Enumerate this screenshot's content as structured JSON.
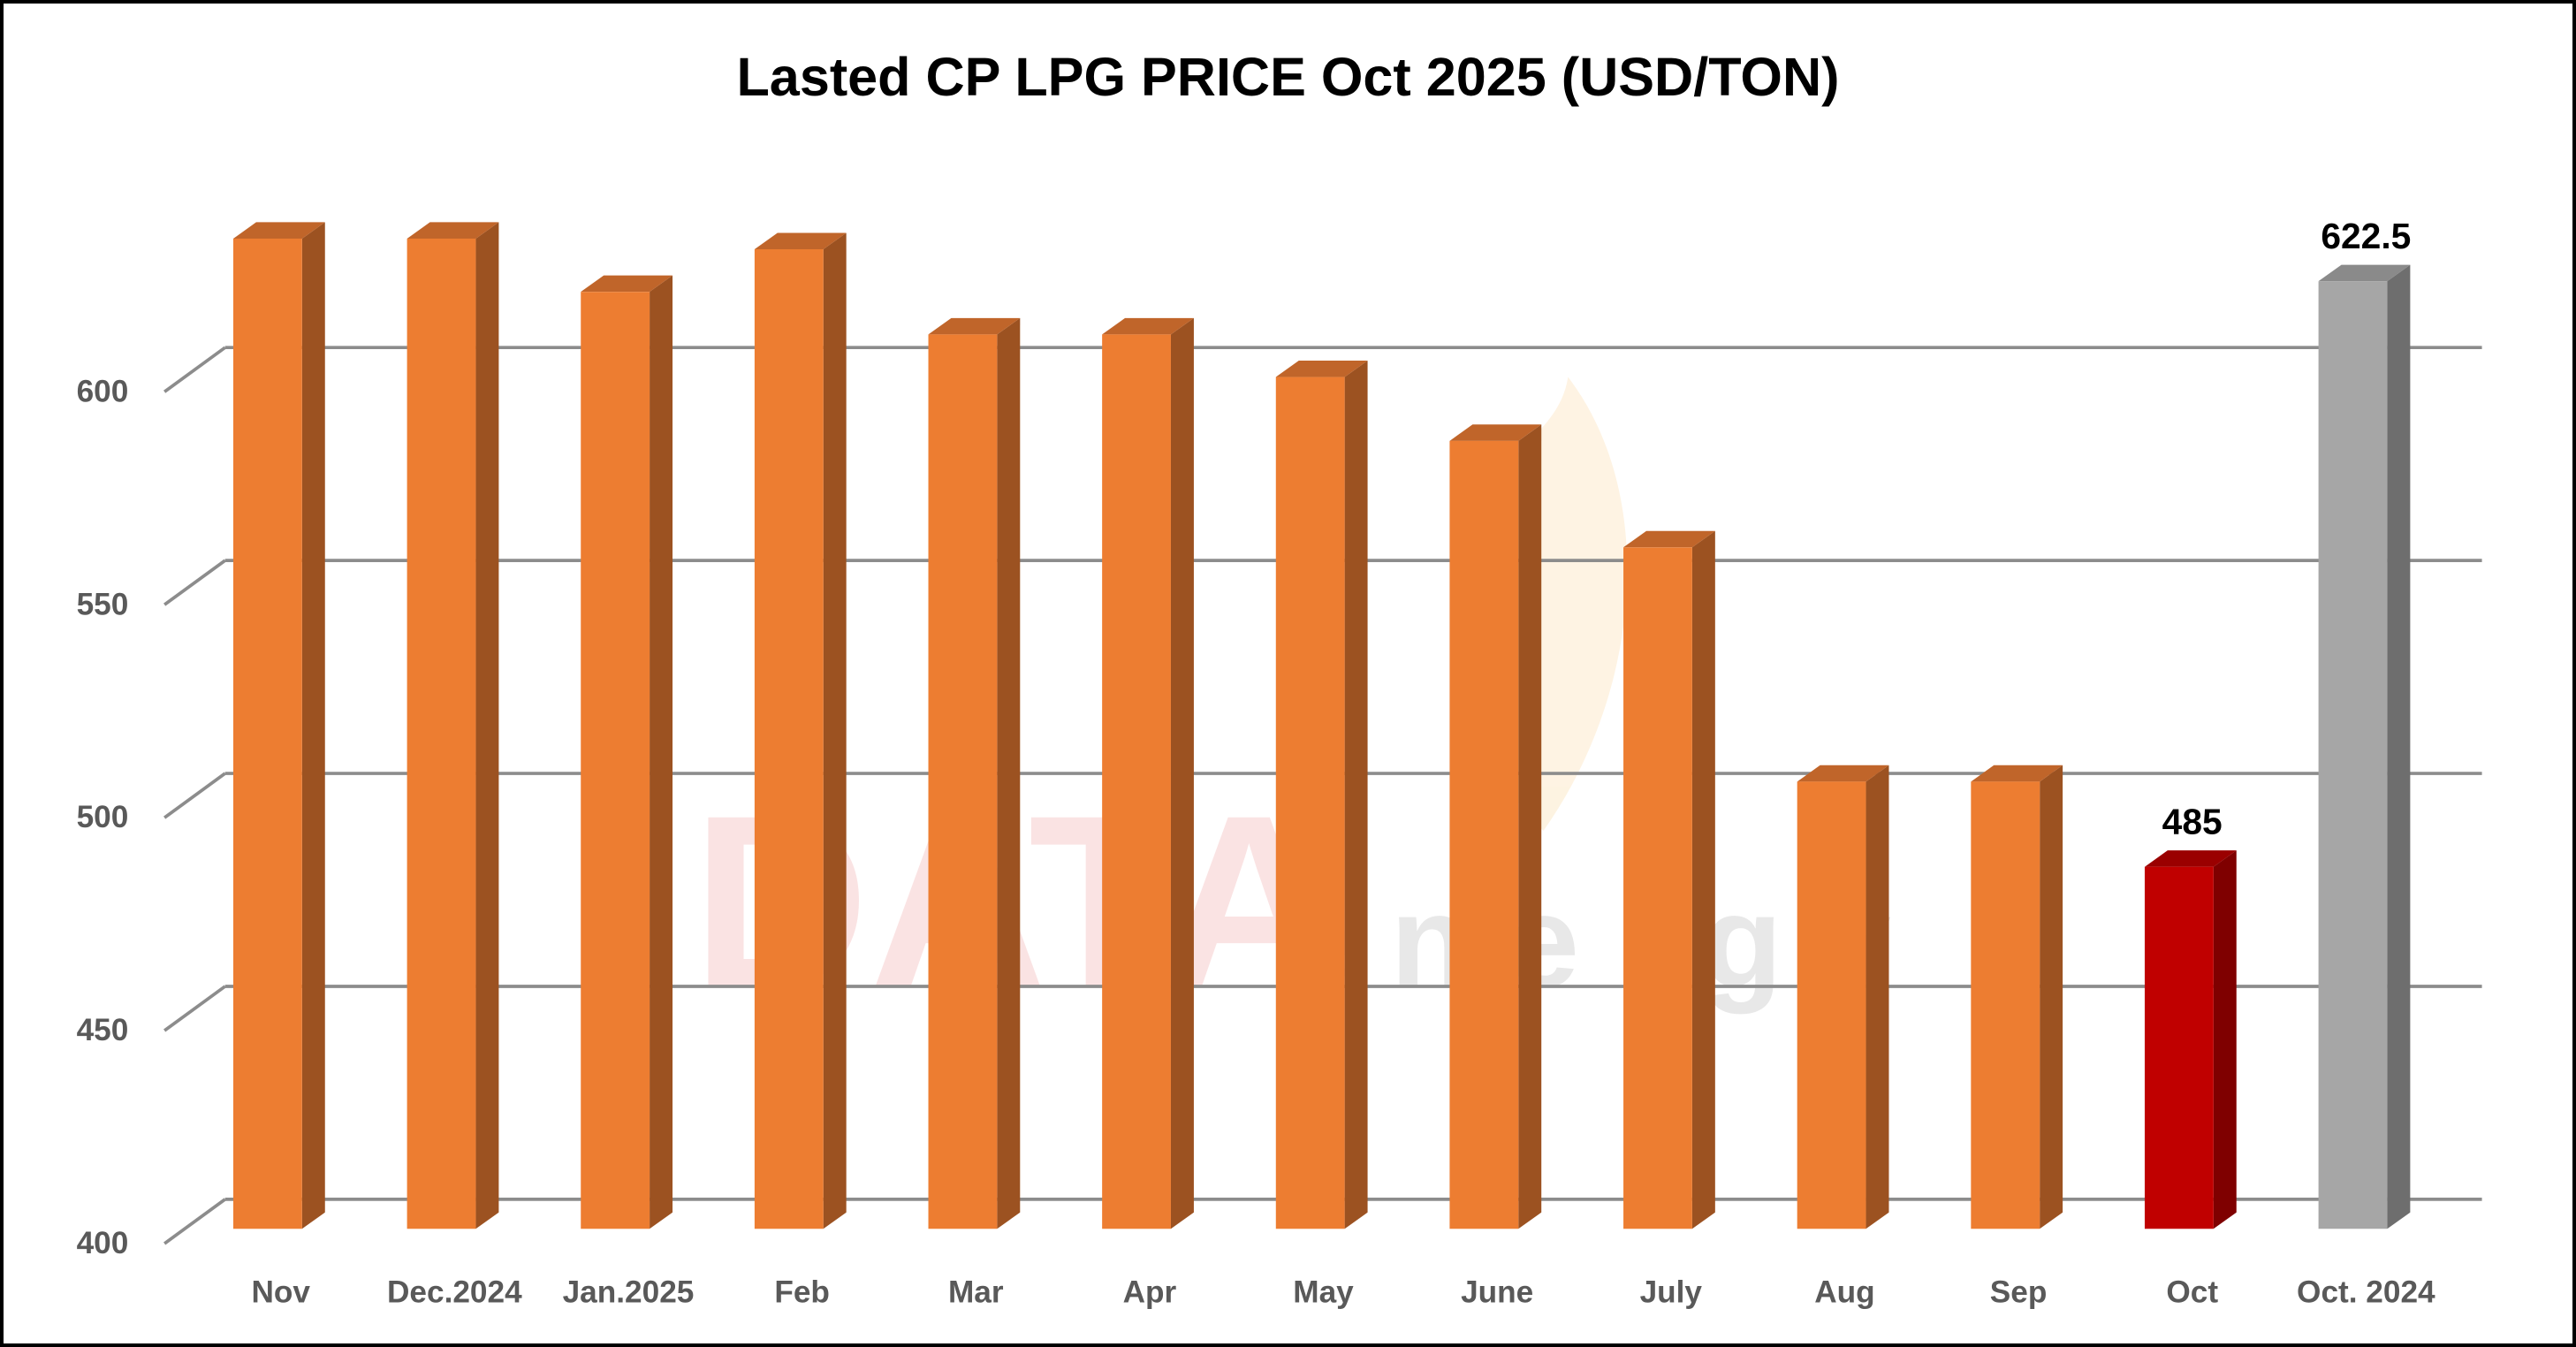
{
  "chart_data": {
    "type": "bar",
    "title": "Lasted CP LPG PRICE Oct 2025 (USD/TON)",
    "xlabel": "",
    "ylabel": "",
    "ylim": [
      400,
      650
    ],
    "yticks": [
      400,
      450,
      500,
      550,
      600
    ],
    "grid": true,
    "categories": [
      "Nov",
      "Dec.2024",
      "Jan.2025",
      "Feb",
      "Mar",
      "Apr",
      "May",
      "June",
      "July",
      "Aug",
      "Sep",
      "Oct",
      "Oct. 2024"
    ],
    "values": [
      632.5,
      632.5,
      620,
      630,
      610,
      610,
      600,
      585,
      560,
      505,
      505,
      485,
      622.5
    ],
    "data_labels": {
      "11": "485",
      "12": "622.5"
    },
    "colors": {
      "default": [
        "#ED7D31",
        "#9C5221",
        "#C0652A"
      ],
      "highlight": [
        "#C00000",
        "#7F0000",
        "#9A0000"
      ],
      "compare": [
        "#A6A6A6",
        "#6E6E6E",
        "#8A8A8A"
      ]
    },
    "highlight_index": 11,
    "compare_index": 12
  },
  "watermark": "DATA energy"
}
